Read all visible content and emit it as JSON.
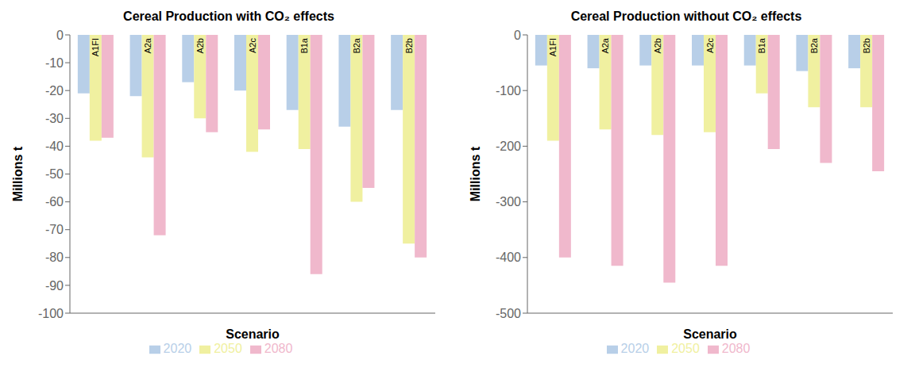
{
  "chart_data": [
    {
      "type": "bar",
      "title": "Cereal Production with CO₂ effects",
      "xlabel": "Scenario",
      "ylabel": "Millions t",
      "categories": [
        "A1FI",
        "A2a",
        "A2b",
        "A2c",
        "B1a",
        "B2a",
        "B2b"
      ],
      "series": [
        {
          "name": "2020",
          "color": "#b8cfe8",
          "values": [
            -21,
            -22,
            -17,
            -20,
            -27,
            -33,
            -27
          ]
        },
        {
          "name": "2050",
          "color": "#f0f0a0",
          "values": [
            -38,
            -44,
            -30,
            -42,
            -41,
            -60,
            -75
          ]
        },
        {
          "name": "2080",
          "color": "#f0b8cc",
          "values": [
            -37,
            -72,
            -35,
            -34,
            -86,
            -55,
            -80
          ]
        }
      ],
      "ylim": [
        -100,
        0
      ],
      "yticks": [
        0,
        -10,
        -20,
        -30,
        -40,
        -50,
        -60,
        -70,
        -80,
        -90,
        -100
      ],
      "grid": false,
      "legend": "bottom",
      "tick_labels": "y"
    },
    {
      "type": "bar",
      "title": "Cereal Production without CO₂ effects",
      "xlabel": "Scenario",
      "ylabel": "Millions t",
      "categories": [
        "A1FI",
        "A2a",
        "A2b",
        "A2c",
        "B1a",
        "B2a",
        "B2b"
      ],
      "series": [
        {
          "name": "2020",
          "color": "#b8cfe8",
          "values": [
            -55,
            -60,
            -55,
            -55,
            -55,
            -65,
            -60
          ]
        },
        {
          "name": "2050",
          "color": "#f0f0a0",
          "values": [
            -190,
            -170,
            -180,
            -175,
            -105,
            -130,
            -130
          ]
        },
        {
          "name": "2080",
          "color": "#f0b8cc",
          "values": [
            -400,
            -415,
            -445,
            -415,
            -205,
            -230,
            -245
          ]
        }
      ],
      "ylim": [
        -500,
        0
      ],
      "yticks": [
        0,
        -100,
        -200,
        -300,
        -400,
        -500
      ],
      "grid": false,
      "legend": "bottom",
      "tick_labels": "y"
    }
  ]
}
